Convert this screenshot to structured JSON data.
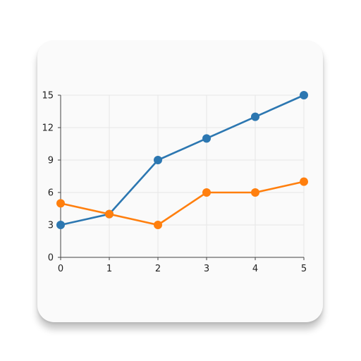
{
  "chart_data": {
    "type": "line",
    "x": [
      0,
      1,
      2,
      3,
      4,
      5
    ],
    "xlim": [
      0,
      5
    ],
    "ylim": [
      0,
      15
    ],
    "yticks": [
      0,
      3,
      6,
      9,
      12,
      15
    ],
    "xticks": [
      0,
      1,
      2,
      3,
      4,
      5
    ],
    "grid": true,
    "title": "",
    "xlabel": "",
    "ylabel": "",
    "series": [
      {
        "values": [
          3,
          4,
          9,
          11,
          13,
          15
        ],
        "color": "#2c77b1"
      },
      {
        "values": [
          5,
          4,
          3,
          6,
          6,
          7
        ],
        "color": "#ff7f0e"
      }
    ]
  },
  "colors": {
    "card_background": "#fafafa",
    "grid": "#e6e6e6",
    "axis": "#444444"
  }
}
